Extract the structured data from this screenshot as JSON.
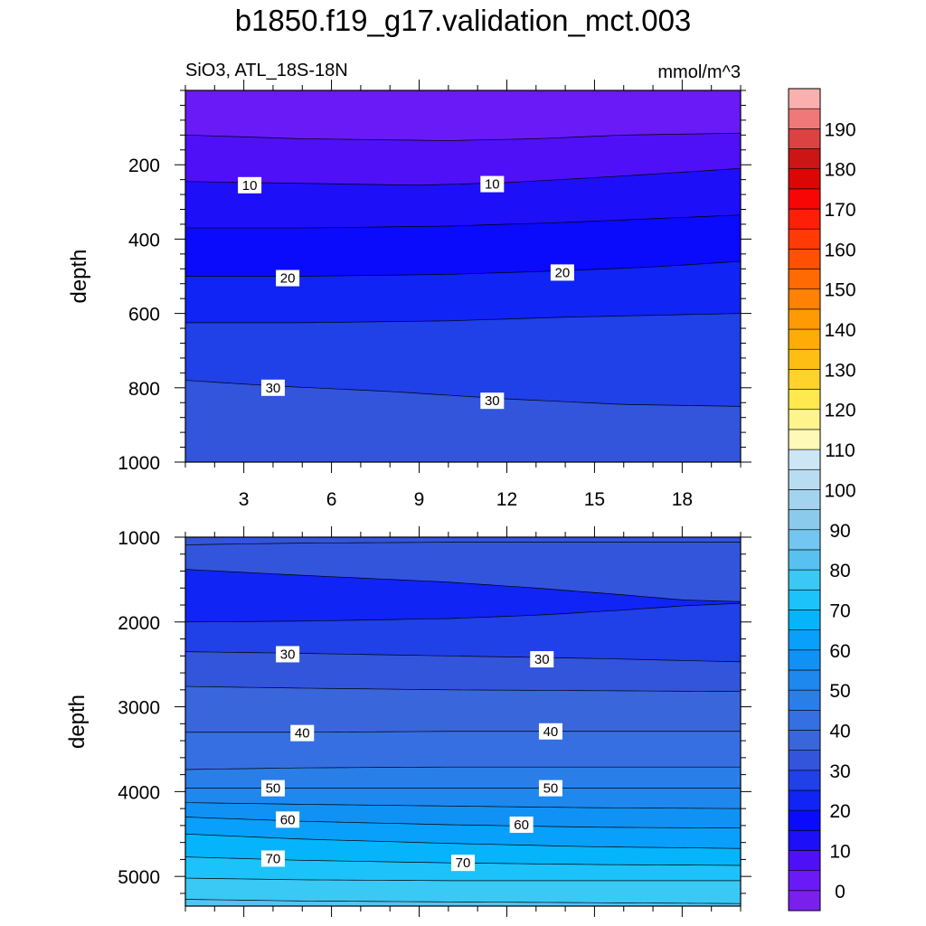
{
  "title": "b1850.f19_g17.validation_mct.003",
  "subtitle_left": "SiO3, ATL_18S-18N",
  "subtitle_right": "mmol/m^3",
  "chart_data": [
    {
      "type": "contour",
      "panel": "upper",
      "ylabel": "depth",
      "xlim": [
        1,
        20
      ],
      "ylim": [
        1000,
        0
      ],
      "xticks": [
        3,
        6,
        9,
        12,
        15,
        18
      ],
      "yticks": [
        200,
        400,
        600,
        800,
        1000
      ],
      "x_tick_labels_shown": true,
      "contour_levels": [
        5,
        10,
        15,
        20,
        25,
        30
      ],
      "contour_labels": [
        {
          "text": "10",
          "x": 3.2,
          "depth": 255
        },
        {
          "text": "10",
          "x": 11.5,
          "depth": 252
        },
        {
          "text": "20",
          "x": 4.5,
          "depth": 505
        },
        {
          "text": "20",
          "x": 13.9,
          "depth": 490
        },
        {
          "text": "30",
          "x": 4.0,
          "depth": 800
        },
        {
          "text": "30",
          "x": 11.5,
          "depth": 835
        }
      ],
      "contours": [
        {
          "level": 5,
          "x": [
            1,
            5,
            10,
            13,
            16,
            20
          ],
          "depth": [
            120,
            130,
            135,
            130,
            120,
            115
          ]
        },
        {
          "level": 10,
          "x": [
            1,
            5,
            9,
            12,
            16,
            20
          ],
          "depth": [
            245,
            250,
            255,
            248,
            230,
            210
          ]
        },
        {
          "level": 15,
          "x": [
            1,
            5,
            10,
            14,
            17,
            20
          ],
          "depth": [
            370,
            370,
            365,
            355,
            345,
            335
          ]
        },
        {
          "level": 20,
          "x": [
            1,
            5,
            10,
            14,
            17,
            20
          ],
          "depth": [
            500,
            500,
            495,
            485,
            475,
            460
          ]
        },
        {
          "level": 25,
          "x": [
            1,
            5,
            10,
            14,
            17,
            20
          ],
          "depth": [
            625,
            625,
            620,
            610,
            605,
            600
          ]
        },
        {
          "level": 30,
          "x": [
            1,
            4,
            8,
            12,
            16,
            20
          ],
          "depth": [
            780,
            795,
            810,
            830,
            845,
            850
          ]
        }
      ]
    },
    {
      "type": "contour",
      "panel": "lower",
      "ylabel": "depth",
      "xlim": [
        1,
        20
      ],
      "ylim": [
        5350,
        1000
      ],
      "xticks": [
        3,
        6,
        9,
        12,
        15,
        18
      ],
      "yticks": [
        1000,
        2000,
        3000,
        4000,
        5000
      ],
      "x_tick_labels_shown": false,
      "contour_levels": [
        25,
        30,
        35,
        40,
        45,
        50,
        55,
        60,
        65,
        70,
        75,
        80
      ],
      "contour_labels": [
        {
          "text": "30",
          "x": 4.5,
          "depth": 2380
        },
        {
          "text": "30",
          "x": 13.2,
          "depth": 2440
        },
        {
          "text": "40",
          "x": 5.0,
          "depth": 3310
        },
        {
          "text": "40",
          "x": 13.5,
          "depth": 3290
        },
        {
          "text": "50",
          "x": 4.0,
          "depth": 3960
        },
        {
          "text": "50",
          "x": 13.5,
          "depth": 3960
        },
        {
          "text": "60",
          "x": 4.5,
          "depth": 4330
        },
        {
          "text": "60",
          "x": 12.5,
          "depth": 4390
        },
        {
          "text": "70",
          "x": 4.0,
          "depth": 4790
        },
        {
          "text": "70",
          "x": 10.5,
          "depth": 4840
        }
      ],
      "contours": [
        {
          "level": 30,
          "x": [
            1,
            5,
            10,
            15,
            20
          ],
          "depth": [
            1090,
            1070,
            1060,
            1060,
            1060
          ]
        },
        {
          "level": 25,
          "x": [
            1,
            5,
            10,
            13,
            16,
            18,
            20
          ],
          "depth": [
            1380,
            1450,
            1530,
            1600,
            1680,
            1740,
            1760
          ]
        },
        {
          "level": 25,
          "x": [
            1,
            5,
            10,
            13,
            16,
            18,
            20
          ],
          "depth": [
            2000,
            1990,
            1960,
            1920,
            1860,
            1810,
            1780
          ]
        },
        {
          "level": 30,
          "x": [
            1,
            5,
            10,
            15,
            20
          ],
          "depth": [
            2350,
            2370,
            2400,
            2430,
            2470
          ]
        },
        {
          "level": 35,
          "x": [
            1,
            5,
            10,
            15,
            20
          ],
          "depth": [
            2760,
            2780,
            2800,
            2810,
            2820
          ]
        },
        {
          "level": 40,
          "x": [
            1,
            5,
            10,
            15,
            20
          ],
          "depth": [
            3300,
            3300,
            3290,
            3290,
            3290
          ]
        },
        {
          "level": 45,
          "x": [
            1,
            5,
            10,
            15,
            20
          ],
          "depth": [
            3740,
            3720,
            3710,
            3710,
            3710
          ]
        },
        {
          "level": 50,
          "x": [
            1,
            5,
            10,
            15,
            20
          ],
          "depth": [
            3960,
            3960,
            3960,
            3960,
            3960
          ]
        },
        {
          "level": 55,
          "x": [
            1,
            5,
            10,
            15,
            20
          ],
          "depth": [
            4130,
            4150,
            4170,
            4190,
            4200
          ]
        },
        {
          "level": 60,
          "x": [
            1,
            5,
            10,
            15,
            20
          ],
          "depth": [
            4300,
            4350,
            4390,
            4420,
            4430
          ]
        },
        {
          "level": 65,
          "x": [
            1,
            5,
            10,
            15,
            20
          ],
          "depth": [
            4500,
            4560,
            4610,
            4650,
            4670
          ]
        },
        {
          "level": 70,
          "x": [
            1,
            5,
            10,
            15,
            20
          ],
          "depth": [
            4770,
            4810,
            4840,
            4860,
            4870
          ]
        },
        {
          "level": 75,
          "x": [
            1,
            5,
            10,
            15,
            20
          ],
          "depth": [
            5020,
            5040,
            5050,
            5050,
            5050
          ]
        },
        {
          "level": 80,
          "x": [
            1,
            5,
            10,
            15,
            20
          ],
          "depth": [
            5270,
            5290,
            5300,
            5310,
            5320
          ]
        }
      ]
    }
  ],
  "colorbar": {
    "labels": [
      "0",
      "10",
      "20",
      "30",
      "40",
      "50",
      "60",
      "70",
      "80",
      "90",
      "100",
      "110",
      "120",
      "130",
      "140",
      "150",
      "160",
      "170",
      "180",
      "190"
    ],
    "colors": [
      "#7a20ec",
      "#6a1af6",
      "#4f10f8",
      "#1e0ff9",
      "#0a0afc",
      "#1024f5",
      "#2040e8",
      "#3355dc",
      "#3a66dc",
      "#366fe2",
      "#2a7ee8",
      "#1e88ee",
      "#1092f5",
      "#08a0fb",
      "#06b4fb",
      "#1cc3fa",
      "#3ac8f5",
      "#57c2f2",
      "#72c6ef",
      "#8ccaec",
      "#a2d3ef",
      "#b8ddf2",
      "#cce6f5",
      "#fff9b8",
      "#fff48c",
      "#ffe94e",
      "#ffd22c",
      "#ffbe14",
      "#ffac08",
      "#ff9a05",
      "#ff8204",
      "#ff6a02",
      "#ff5003",
      "#ff3a05",
      "#ff1e06",
      "#f80605",
      "#dc0605",
      "#cc1515",
      "#dc4242",
      "#f07878",
      "#fbb0b0"
    ],
    "value_min": -5,
    "value_max": 200
  }
}
